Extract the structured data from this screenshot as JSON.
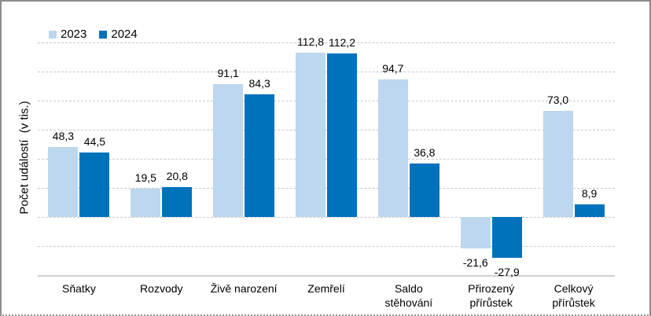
{
  "window": {
    "background": "#ffffff",
    "border_color": "#8d8d8d"
  },
  "chart_data": {
    "type": "bar",
    "title": "",
    "xlabel": "",
    "ylabel": "Počet událostí  (v tis.)",
    "ylim": [
      -40,
      120
    ],
    "grid_step": 20,
    "grid": true,
    "legend_position": "top-left",
    "decimal_separator": ",",
    "categories": [
      "Sňatky",
      "Rozvody",
      "Živě narození",
      "Zemřelí",
      "Saldo\nstěhování",
      "Přirozený\npřírůstek",
      "Celkový\npřírůstek"
    ],
    "series": [
      {
        "name": "2023",
        "color": "#BDD7EE",
        "values": [
          48.3,
          19.5,
          91.1,
          112.8,
          94.7,
          -21.6,
          73.0
        ],
        "labels": [
          "48,3",
          "19,5",
          "91,1",
          "112,8",
          "94,7",
          "-21,6",
          "73,0"
        ]
      },
      {
        "name": "2024",
        "color": "#0072BC",
        "values": [
          44.5,
          20.8,
          84.3,
          112.2,
          36.8,
          -27.9,
          8.9
        ],
        "labels": [
          "44,5",
          "20,8",
          "84,3",
          "112,2",
          "36,8",
          "-27,9",
          "8,9"
        ]
      }
    ]
  }
}
